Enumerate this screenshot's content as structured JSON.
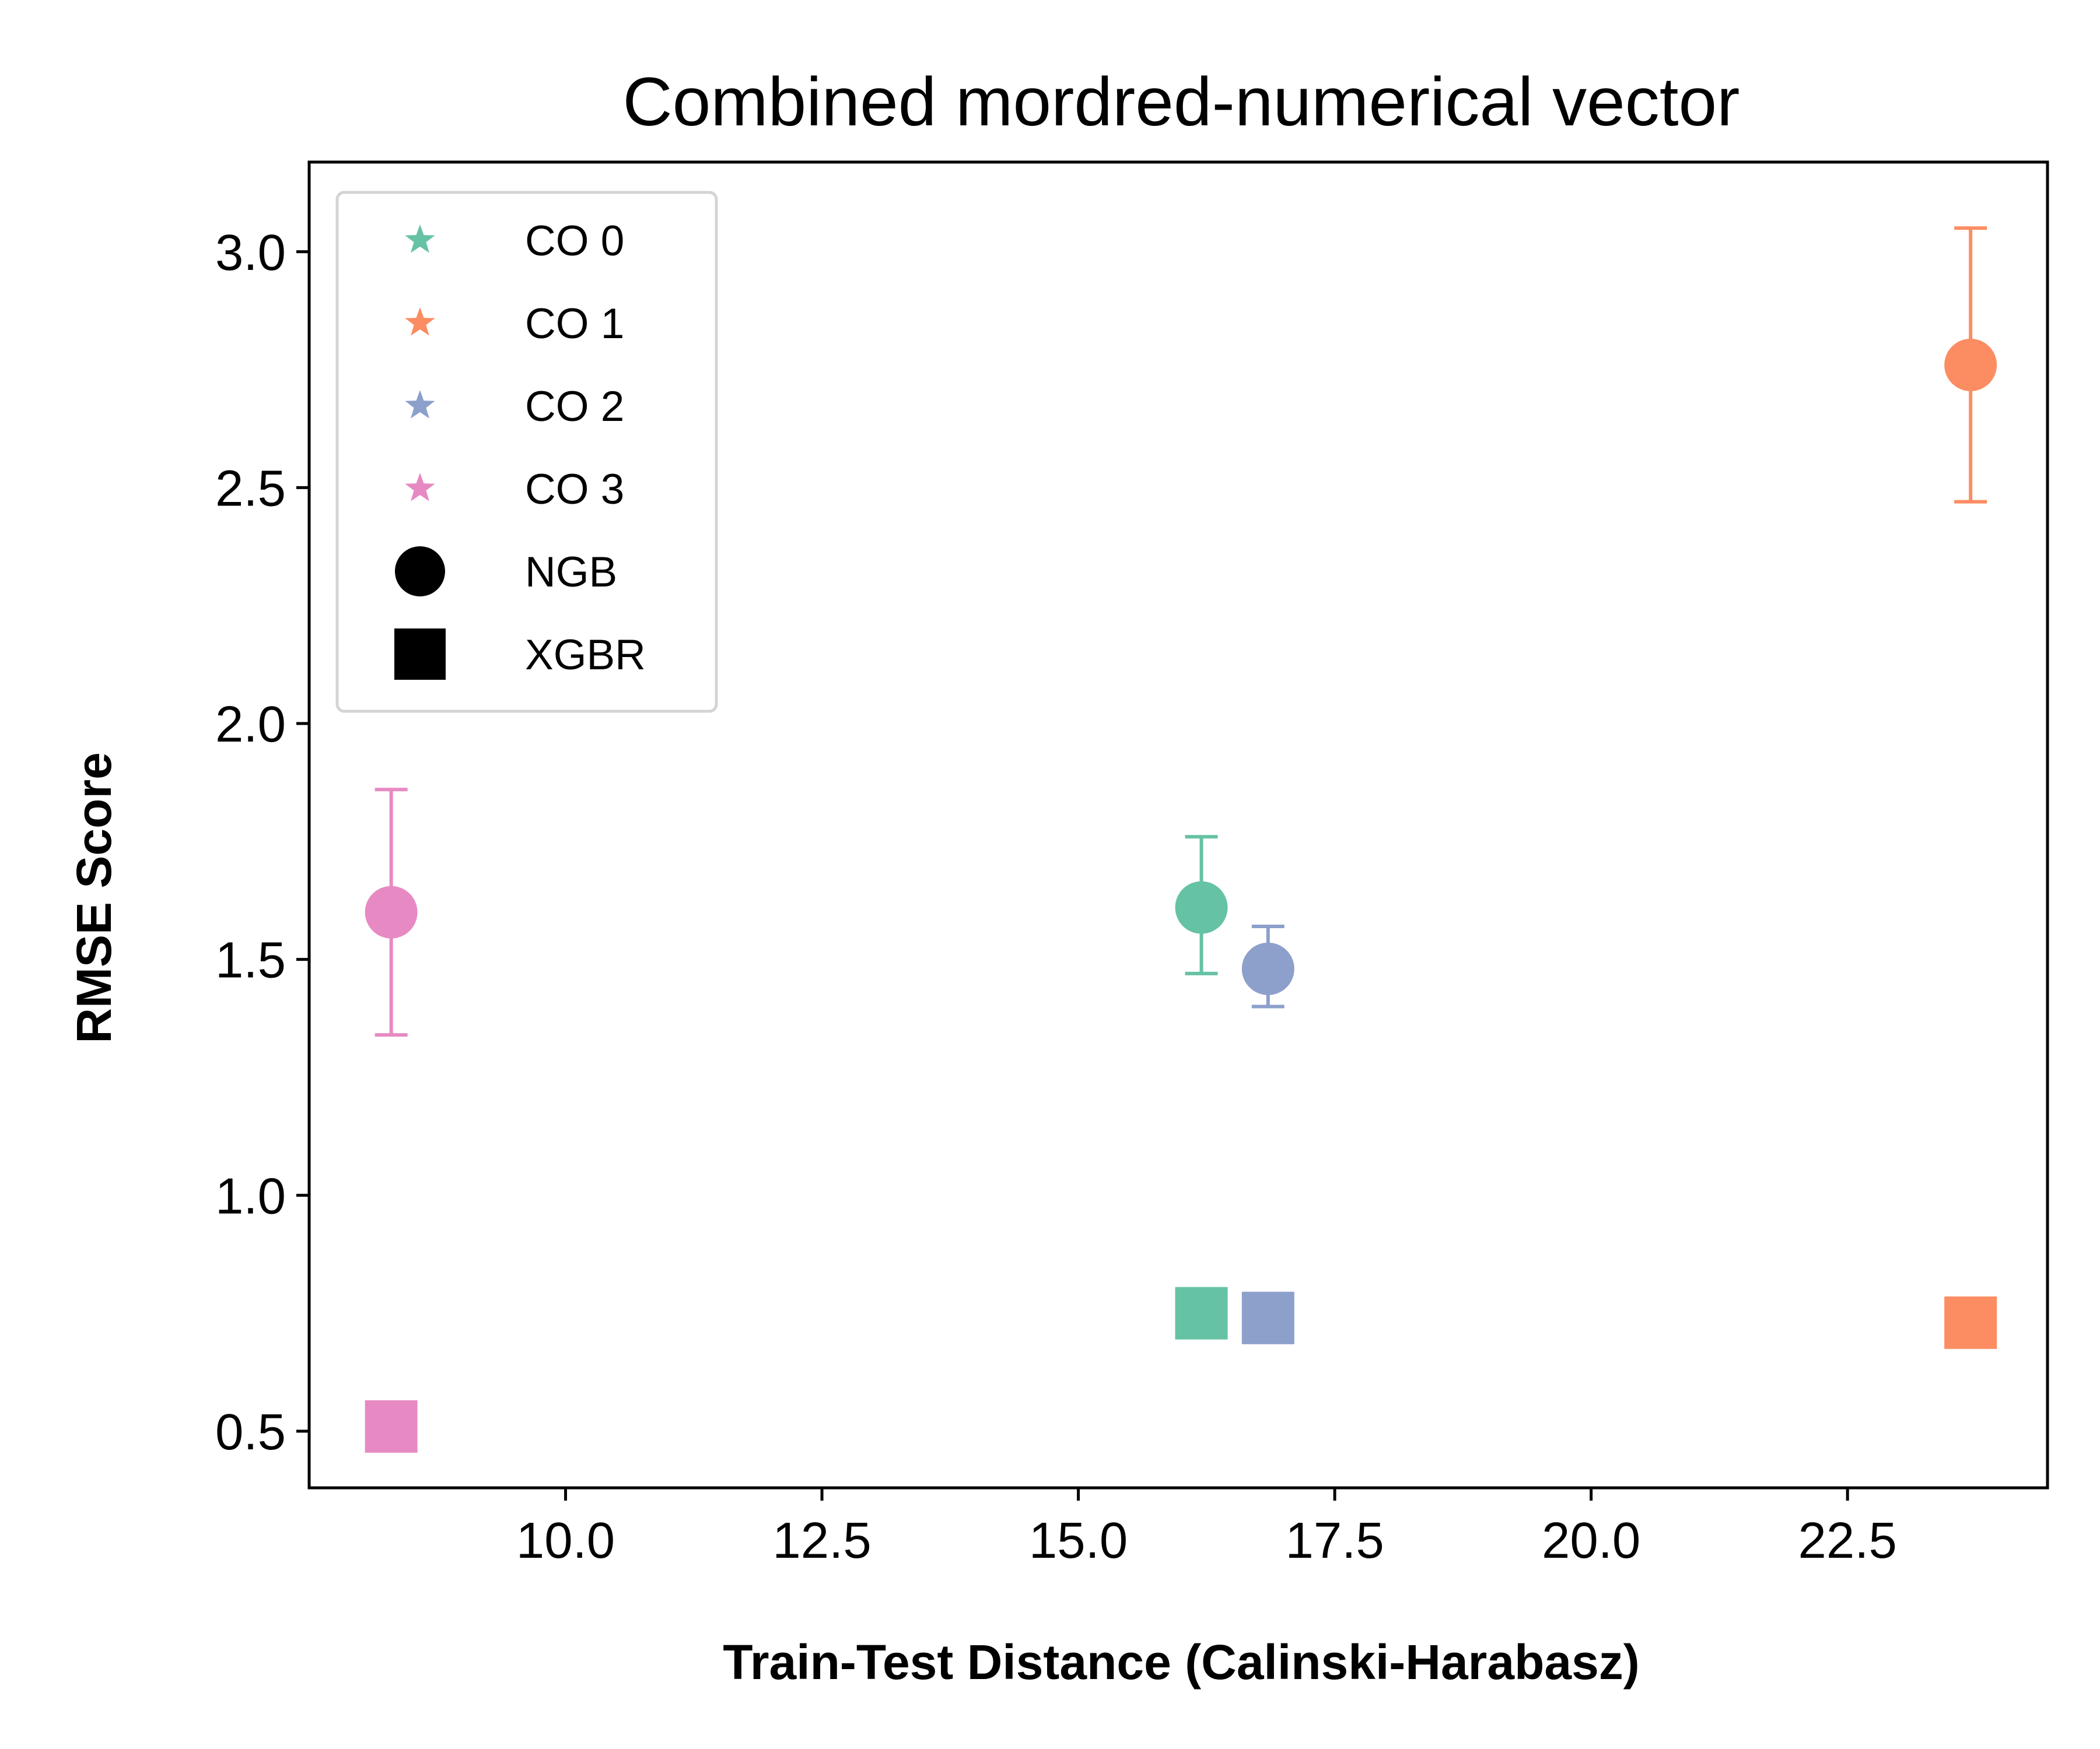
{
  "chart_data": {
    "type": "scatter",
    "title": "Combined mordred-numerical vector",
    "xlabel": "Train-Test Distance (Calinski-Harabasz)",
    "ylabel": "RMSE Score",
    "xlim": [
      7.5,
      24.45
    ],
    "ylim": [
      0.38,
      3.19
    ],
    "x_ticks": [
      10.0,
      12.5,
      15.0,
      17.5,
      20.0,
      22.5
    ],
    "x_tick_labels": [
      "10.0",
      "12.5",
      "15.0",
      "17.5",
      "20.0",
      "22.5"
    ],
    "y_ticks": [
      0.5,
      1.0,
      1.5,
      2.0,
      2.5,
      3.0
    ],
    "y_tick_labels": [
      "0.5",
      "1.0",
      "1.5",
      "2.0",
      "2.5",
      "3.0"
    ],
    "grid": false,
    "legend_position": "top-left",
    "series": [
      {
        "name": "CO 0",
        "color": "#66c2a5",
        "x": 16.2,
        "ngb": {
          "y": 1.61,
          "err_low": 1.47,
          "err_high": 1.76
        },
        "xgbr": {
          "y": 0.75
        }
      },
      {
        "name": "CO 1",
        "color": "#fc8d62",
        "x": 23.7,
        "ngb": {
          "y": 2.76,
          "err_low": 2.47,
          "err_high": 3.05
        },
        "xgbr": {
          "y": 0.73
        }
      },
      {
        "name": "CO 2",
        "color": "#8da0cb",
        "x": 16.85,
        "ngb": {
          "y": 1.48,
          "err_low": 1.4,
          "err_high": 1.57
        },
        "xgbr": {
          "y": 0.74
        }
      },
      {
        "name": "CO 3",
        "color": "#e78ac3",
        "x": 8.3,
        "ngb": {
          "y": 1.6,
          "err_low": 1.34,
          "err_high": 1.86
        },
        "xgbr": {
          "y": 0.51
        }
      }
    ],
    "marker_legend": [
      {
        "name": "NGB",
        "marker": "circle",
        "color": "#000000"
      },
      {
        "name": "XGBR",
        "marker": "square",
        "color": "#000000"
      }
    ]
  }
}
